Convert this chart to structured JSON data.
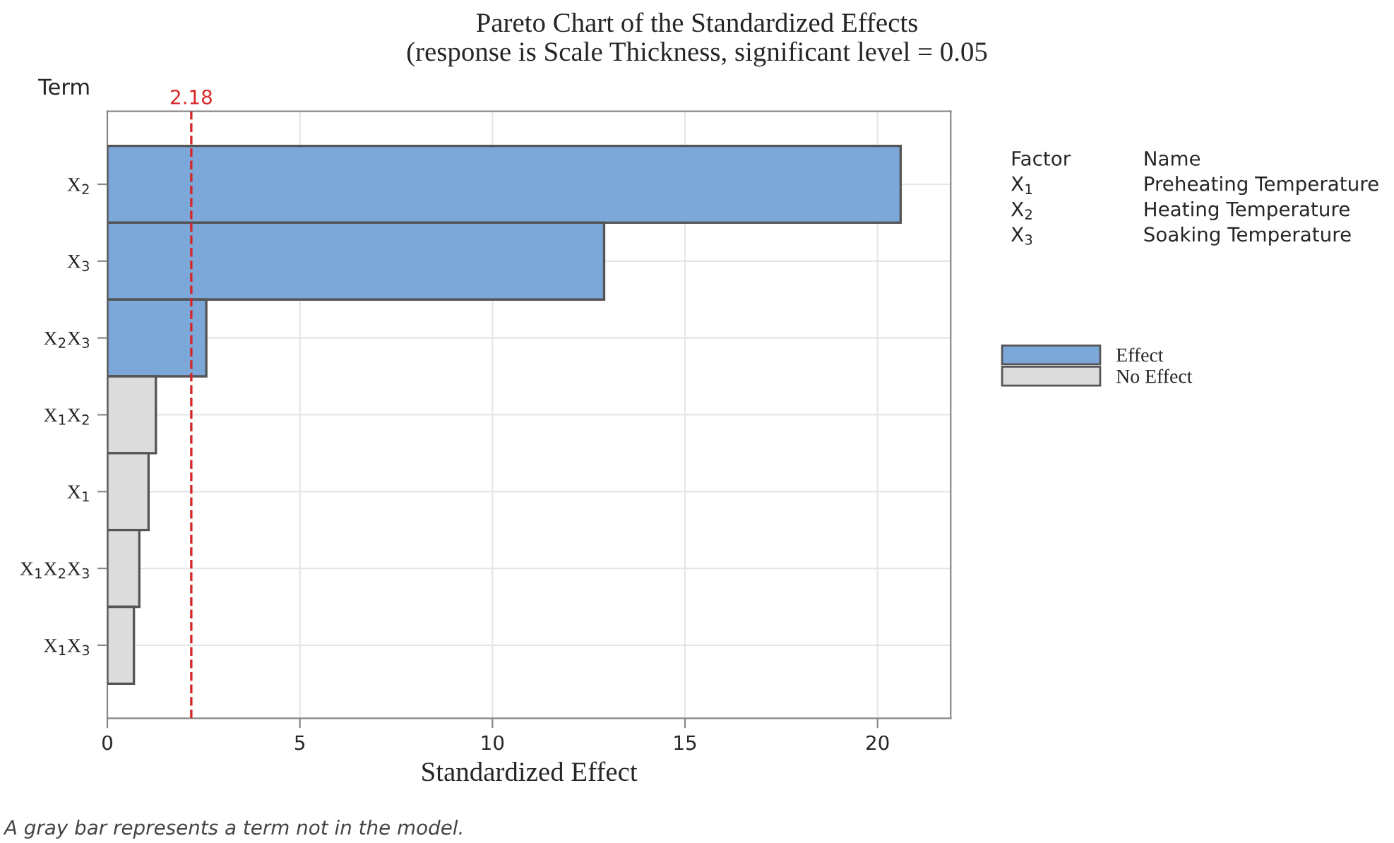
{
  "chart_data": {
    "type": "bar",
    "orientation": "horizontal",
    "title": "Pareto Chart of the Standardized Effects\n(response is Scale Thickness, significant level = 0.05",
    "xlabel": "Standardized Effect",
    "ylabel": "Term",
    "categories": [
      "X$_{2}$",
      "X$_{3}$",
      "X$_{2}$X$_{3}$",
      "X$_{1}$X$_{2}$",
      "X$_{1}$",
      "X$_{1}$X$_{2}$X$_{3}$",
      "X$_{1}$X$_{3}$"
    ],
    "series": [
      {
        "name": "Effect",
        "color": "#7ba7d9",
        "values": [
          20.6,
          12.9,
          2.57,
          null,
          null,
          null,
          null
        ]
      },
      {
        "name": "No Effect",
        "color": "#dcdcdc",
        "values": [
          null,
          null,
          null,
          1.26,
          1.07,
          0.83,
          0.69
        ]
      }
    ],
    "xlim": [
      0,
      21.9
    ],
    "xticks": [
      0,
      5,
      10,
      15,
      20
    ],
    "ref_lines": [
      {
        "axis": "x",
        "value": 2.18,
        "label": "2.18",
        "color": "#d62728",
        "line_style": "dashed"
      }
    ],
    "grid": true,
    "legend": "right",
    "annotations": [
      "Factor",
      "Name",
      "X$_{1}$",
      "Preheating Temperature",
      "X$_{2}$",
      "Heating Temperature",
      "X$_{3}$",
      "Soaking Temperature",
      "A gray bar represents a term not in the model."
    ]
  }
}
